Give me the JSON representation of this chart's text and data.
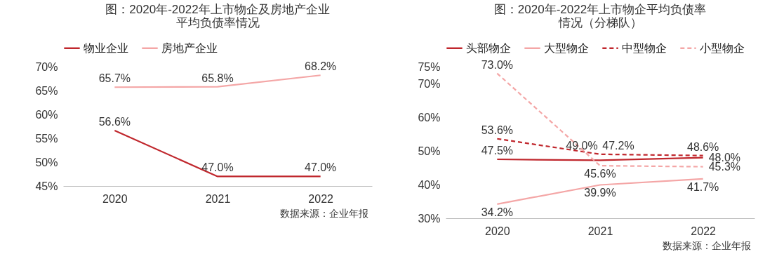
{
  "chart_data": [
    {
      "type": "line",
      "title": "图：2020年-2022年上市物企及房地产企业平均负债率情况",
      "categories": [
        "2020",
        "2021",
        "2022"
      ],
      "ylim": [
        45,
        70
      ],
      "yticks": [
        {
          "value": 45,
          "label": "45%"
        },
        {
          "value": 50,
          "label": "50%"
        },
        {
          "value": 55,
          "label": "55%"
        },
        {
          "value": 60,
          "label": "60%"
        },
        {
          "value": 65,
          "label": "65%"
        },
        {
          "value": 70,
          "label": "70%"
        }
      ],
      "legend": "top",
      "annotations": [
        "数据来源：企业年报"
      ],
      "series": [
        {
          "name": "物业企业",
          "color": "#c0272d",
          "line_style": "solid",
          "values": [
            56.6,
            47.0,
            47.0
          ],
          "value_labels": [
            "56.6%",
            "47.0%",
            "47.0%"
          ]
        },
        {
          "name": "房地产企业",
          "color": "#f4a6a6",
          "line_style": "solid",
          "values": [
            65.7,
            65.8,
            68.2
          ],
          "value_labels": [
            "65.7%",
            "65.8%",
            "68.2%"
          ]
        }
      ]
    },
    {
      "type": "line",
      "title": "图：2020年-2022年上市物企平均负债率情况（分梯队）",
      "categories": [
        "2020",
        "2021",
        "2022"
      ],
      "ylim": [
        30,
        75
      ],
      "yticks": [
        {
          "value": 30,
          "label": "30%"
        },
        {
          "value": 40,
          "label": "40%"
        },
        {
          "value": 50,
          "label": "50%"
        },
        {
          "value": 60,
          "label": "60%"
        },
        {
          "value": 70,
          "label": "70%"
        },
        {
          "value": 75,
          "label": "75%"
        }
      ],
      "legend": "top",
      "annotations": [
        "数据来源：企业年报"
      ],
      "series": [
        {
          "name": "头部物企",
          "color": "#c0272d",
          "line_style": "solid",
          "values": [
            47.5,
            47.2,
            48.0
          ],
          "value_labels": [
            "47.5%",
            "47.2%",
            "48.0%"
          ]
        },
        {
          "name": "大型物企",
          "color": "#f4a6a6",
          "line_style": "solid",
          "values": [
            34.2,
            39.9,
            41.7
          ],
          "value_labels": [
            "34.2%",
            "39.9%",
            "41.7%"
          ]
        },
        {
          "name": "中型物企",
          "color": "#c0272d",
          "line_style": "dashed",
          "values": [
            53.6,
            49.0,
            48.6
          ],
          "value_labels": [
            "53.6%",
            "49.0%",
            "48.6%"
          ]
        },
        {
          "name": "小型物企",
          "color": "#f4a6a6",
          "line_style": "dashed",
          "values": [
            73.0,
            45.6,
            45.3
          ],
          "value_labels": [
            "73.0%",
            "45.6%",
            "45.3%"
          ]
        }
      ]
    }
  ]
}
